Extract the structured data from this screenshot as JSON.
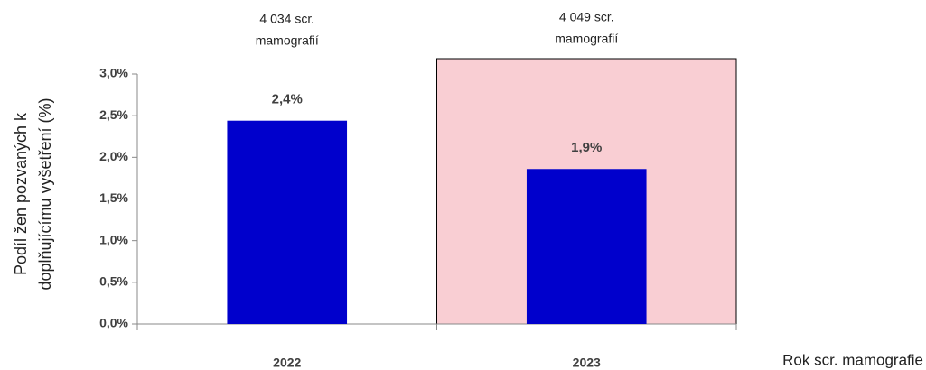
{
  "chart_data": {
    "type": "bar",
    "categories": [
      "2022",
      "2023"
    ],
    "values": [
      2.44,
      1.86
    ],
    "value_labels": [
      "2,4%",
      "1,9%"
    ],
    "annotations": [
      [
        "4 034 scr.",
        "mamografií"
      ],
      [
        "4 049 scr.",
        "mamografií"
      ]
    ],
    "color": "#0000cc",
    "highlight": {
      "category_index": 1,
      "color": "#f9ced3"
    },
    "x_label": "Rok scr. mamografie",
    "y_label": [
      "Podíl žen pozvaných k",
      "doplňujícímu vyšetření (%)"
    ],
    "ylim": [
      0,
      3
    ],
    "yticks": [
      {
        "value": 0,
        "label": "0,0%"
      },
      {
        "value": 0.5,
        "label": "0,5%"
      },
      {
        "value": 1,
        "label": "1,0%"
      },
      {
        "value": 1.5,
        "label": "1,5%"
      },
      {
        "value": 2,
        "label": "2,0%"
      },
      {
        "value": 2.5,
        "label": "2,5%"
      },
      {
        "value": 3,
        "label": "3,0%"
      }
    ],
    "grid": false
  }
}
